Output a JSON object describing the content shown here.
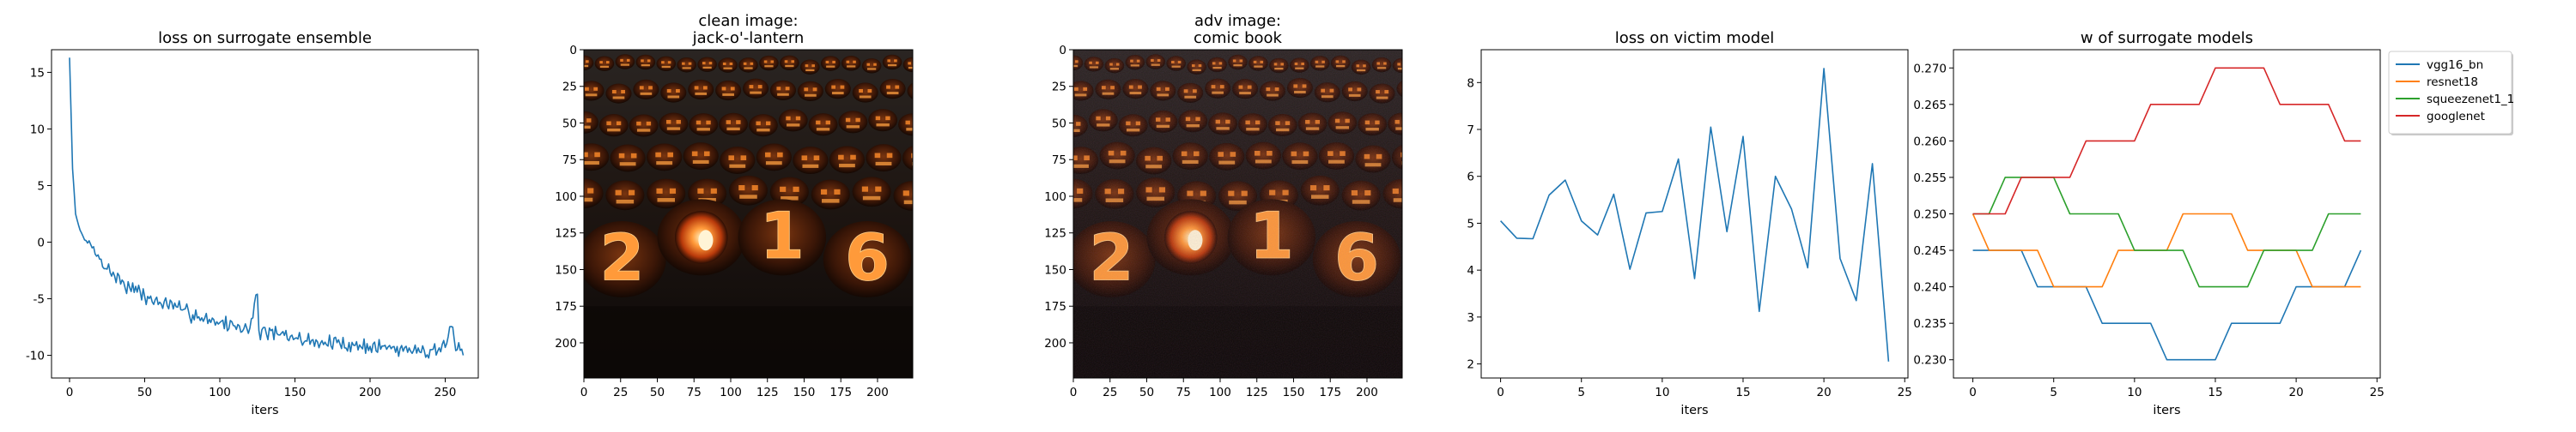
{
  "figure": {
    "background": "#ffffff"
  },
  "chart_data": [
    {
      "type": "line",
      "title": "loss on surrogate ensemble",
      "xlabel": "iters",
      "ylabel": "",
      "xlim": [
        -12,
        272
      ],
      "ylim": [
        -12,
        17
      ],
      "xticks": [
        0,
        50,
        100,
        150,
        200,
        250
      ],
      "yticks": [
        -10,
        -5,
        0,
        5,
        10,
        15
      ],
      "grid": false,
      "series": [
        {
          "color": "#1f77b4",
          "keypoints": [
            [
              0,
              16.3
            ],
            [
              2,
              6.5
            ],
            [
              4,
              2.5
            ],
            [
              6,
              1.5
            ],
            [
              8,
              0.8
            ],
            [
              10,
              0.2
            ],
            [
              15,
              -0.5
            ],
            [
              20,
              -1.5
            ],
            [
              30,
              -3.0
            ],
            [
              40,
              -4.0
            ],
            [
              50,
              -4.8
            ],
            [
              60,
              -5.3
            ],
            [
              75,
              -6.0
            ],
            [
              90,
              -6.7
            ],
            [
              100,
              -7.1
            ],
            [
              110,
              -7.4
            ],
            [
              120,
              -7.6
            ],
            [
              125,
              -4.6
            ],
            [
              126,
              -7.8
            ],
            [
              140,
              -8.2
            ],
            [
              150,
              -8.5
            ],
            [
              165,
              -8.8
            ],
            [
              180,
              -9.0
            ],
            [
              200,
              -9.2
            ],
            [
              220,
              -9.4
            ],
            [
              240,
              -9.5
            ],
            [
              250,
              -9.3
            ],
            [
              255,
              -7.5
            ],
            [
              258,
              -9.5
            ],
            [
              262,
              -10.0
            ]
          ],
          "noise": 0.9,
          "seed": 7
        }
      ]
    },
    {
      "type": "image",
      "title": "clean image:\njack-o'-lantern",
      "xlim": [
        0,
        224
      ],
      "ylim": [
        224,
        0
      ],
      "xticks": [
        0,
        25,
        50,
        75,
        100,
        125,
        150,
        175,
        200
      ],
      "yticks": [
        0,
        25,
        50,
        75,
        100,
        125,
        150,
        175,
        200
      ],
      "digits": [
        "2",
        "0",
        "1",
        "6"
      ]
    },
    {
      "type": "image",
      "title": "adv image:\ncomic book",
      "xlim": [
        0,
        224
      ],
      "ylim": [
        224,
        0
      ],
      "xticks": [
        0,
        25,
        50,
        75,
        100,
        125,
        150,
        175,
        200
      ],
      "yticks": [
        0,
        25,
        50,
        75,
        100,
        125,
        150,
        175,
        200
      ],
      "digits": [
        "2",
        "0",
        "1",
        "6"
      ]
    },
    {
      "type": "line",
      "title": "loss on victim model",
      "xlabel": "iters",
      "ylabel": "",
      "xlim": [
        -1.2,
        25.2
      ],
      "ylim": [
        1.7,
        8.7
      ],
      "xticks": [
        0,
        5,
        10,
        15,
        20,
        25
      ],
      "yticks": [
        2,
        3,
        4,
        5,
        6,
        7,
        8
      ],
      "grid": false,
      "series": [
        {
          "color": "#1f77b4",
          "x": [
            0,
            1,
            2,
            3,
            4,
            5,
            6,
            7,
            8,
            9,
            10,
            11,
            12,
            13,
            14,
            15,
            16,
            17,
            18,
            19,
            20,
            21,
            22,
            23,
            24
          ],
          "y": [
            5.05,
            4.68,
            4.67,
            5.6,
            5.92,
            5.05,
            4.75,
            5.62,
            4.02,
            5.22,
            5.25,
            6.37,
            3.82,
            7.05,
            4.82,
            6.85,
            3.12,
            6.0,
            5.3,
            4.05,
            8.3,
            4.25,
            3.35,
            6.27,
            2.05
          ]
        }
      ]
    },
    {
      "type": "line",
      "title": "w of surrogate models",
      "xlabel": "iters",
      "ylabel": "",
      "xlim": [
        -1.2,
        25.2
      ],
      "ylim": [
        0.2275,
        0.2725
      ],
      "xticks": [
        0,
        5,
        10,
        15,
        20,
        25
      ],
      "yticks": [
        "0.230",
        "0.235",
        "0.240",
        "0.245",
        "0.250",
        "0.255",
        "0.260",
        "0.265",
        "0.270"
      ],
      "grid": false,
      "legend": "outside-upper-right",
      "series": [
        {
          "name": "vgg16_bn",
          "color": "#1f77b4",
          "x": [
            0,
            1,
            2,
            3,
            4,
            5,
            6,
            7,
            8,
            9,
            10,
            11,
            12,
            13,
            14,
            15,
            16,
            17,
            18,
            19,
            20,
            21,
            22,
            23,
            24
          ],
          "y": [
            0.245,
            0.245,
            0.245,
            0.245,
            0.24,
            0.24,
            0.24,
            0.24,
            0.235,
            0.235,
            0.235,
            0.235,
            0.23,
            0.23,
            0.23,
            0.23,
            0.235,
            0.235,
            0.235,
            0.235,
            0.24,
            0.24,
            0.24,
            0.24,
            0.245
          ]
        },
        {
          "name": "resnet18",
          "color": "#ff7f0e",
          "x": [
            0,
            1,
            2,
            3,
            4,
            5,
            6,
            7,
            8,
            9,
            10,
            11,
            12,
            13,
            14,
            15,
            16,
            17,
            18,
            19,
            20,
            21,
            22,
            23,
            24
          ],
          "y": [
            0.25,
            0.245,
            0.245,
            0.245,
            0.245,
            0.24,
            0.24,
            0.24,
            0.24,
            0.245,
            0.245,
            0.245,
            0.245,
            0.25,
            0.25,
            0.25,
            0.25,
            0.245,
            0.245,
            0.245,
            0.245,
            0.24,
            0.24,
            0.24,
            0.24
          ]
        },
        {
          "name": "squeezenet1_1",
          "color": "#2ca02c",
          "x": [
            0,
            1,
            2,
            3,
            4,
            5,
            6,
            7,
            8,
            9,
            10,
            11,
            12,
            13,
            14,
            15,
            16,
            17,
            18,
            19,
            20,
            21,
            22,
            23,
            24
          ],
          "y": [
            0.25,
            0.25,
            0.255,
            0.255,
            0.255,
            0.255,
            0.25,
            0.25,
            0.25,
            0.25,
            0.245,
            0.245,
            0.245,
            0.245,
            0.24,
            0.24,
            0.24,
            0.24,
            0.245,
            0.245,
            0.245,
            0.245,
            0.25,
            0.25,
            0.25
          ]
        },
        {
          "name": "googlenet",
          "color": "#d62728",
          "x": [
            0,
            1,
            2,
            3,
            4,
            5,
            6,
            7,
            8,
            9,
            10,
            11,
            12,
            13,
            14,
            15,
            16,
            17,
            18,
            19,
            20,
            21,
            22,
            23,
            24
          ],
          "y": [
            0.25,
            0.25,
            0.25,
            0.255,
            0.255,
            0.255,
            0.255,
            0.26,
            0.26,
            0.26,
            0.26,
            0.265,
            0.265,
            0.265,
            0.265,
            0.27,
            0.27,
            0.27,
            0.27,
            0.265,
            0.265,
            0.265,
            0.265,
            0.26,
            0.26
          ]
        }
      ]
    }
  ]
}
